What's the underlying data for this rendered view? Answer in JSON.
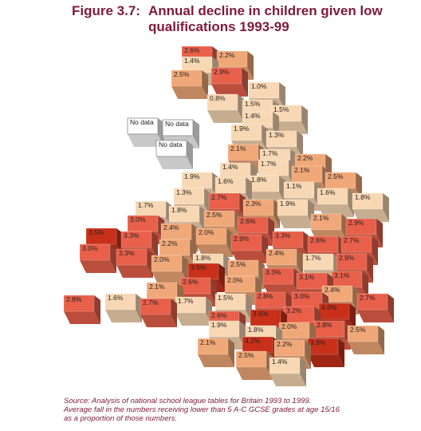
{
  "title": {
    "number": "Figure 3.7:",
    "text": "Annual decline in children given low qualifications 1993-99"
  },
  "source": [
    "Source: Analysis of national school league tables for Britain 1993 to 1999.",
    "Average fall in the numbers receiving lower than 5 A-C GCSE grades at age 15/16",
    "as a proportion of those numbers."
  ],
  "colors": {
    "light": "#f8d8b4",
    "mid": "#f0a878",
    "high": "#e8604a",
    "top": "#c8301a",
    "nodata": "#ffffff"
  },
  "chart_data": {
    "type": "heatmap",
    "title": "Annual decline in children given low qualifications 1993-99",
    "unit": "%",
    "values": [
      "2.6%",
      "2.2%",
      "1.4%",
      "2.5%",
      "2.9%",
      "1.0%",
      "0.8%",
      "1.5%",
      "1.4%",
      "1.5%",
      "No data",
      "No data",
      "No data",
      "1.9%",
      "1.3%",
      "2.1%",
      "1.7%",
      "2.2%",
      "1.4%",
      "1.7%",
      "2.1%",
      "2.5%",
      "1.9%",
      "1.6%",
      "1.8%",
      "1.1%",
      "1.6%",
      "1.8%",
      "1.3%",
      "2.7%",
      "2.3%",
      "1.9%",
      "1.7%",
      "1.8%",
      "2.5%",
      "2.1%",
      "3.0%",
      "2.6%",
      "2.9%",
      "2.4%",
      "2.0%",
      "3.3%",
      "2.6%",
      "2.7%",
      "3.5%",
      "3.3%",
      "2.2%",
      "2.9%",
      "3.0%",
      "3.3%",
      "2.0%",
      "1.8%",
      "2.4%",
      "1.7%",
      "2.9%",
      "3.5%",
      "2.5%",
      "3.3%",
      "3.1%",
      "3.1%",
      "2.0%",
      "2.4%",
      "2.7%",
      "2.1%",
      "2.6%",
      "2.8%",
      "1.6%",
      "2.7%",
      "1.7%",
      "1.5%",
      "2.8%",
      "3.0%",
      "3.6%",
      "3.2%",
      "4.0%",
      "2.6%",
      "1.9%",
      "1.8%",
      "2.0%",
      "2.8%",
      "2.5%",
      "4.2%",
      "2.2%",
      "3.9%",
      "2.1%",
      "2.5%",
      "1.4%"
    ]
  }
}
